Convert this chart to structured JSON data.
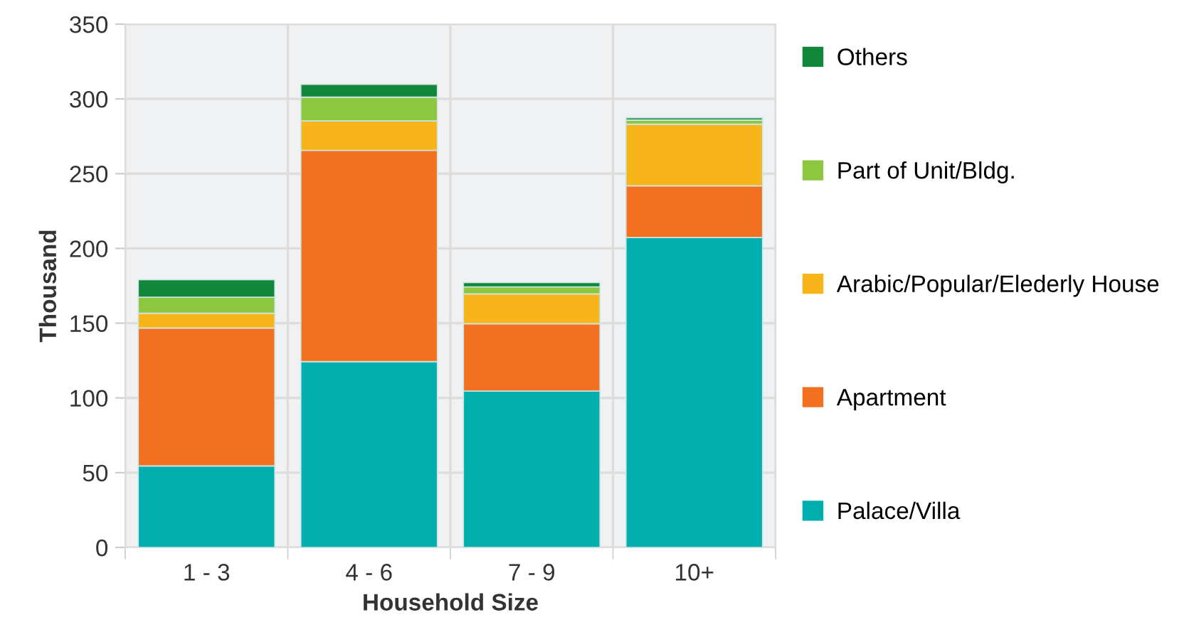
{
  "chart_data": {
    "type": "bar",
    "stacked": true,
    "xlabel": "Household Size",
    "ylabel": "Thousand",
    "categories": [
      "1 - 3",
      "4 - 6",
      "7 - 9",
      "10+"
    ],
    "series": [
      {
        "name": "Palace/Villa",
        "color": "#00aeae",
        "values": [
          54.5,
          124.3,
          104.6,
          207.3
        ]
      },
      {
        "name": "Apartment",
        "color": "#f37021",
        "values": [
          92.3,
          141.3,
          45,
          34.6
        ]
      },
      {
        "name": "Arabic/Popular/Elederly House",
        "color": "#f8b51a",
        "values": [
          9.8,
          19.7,
          20,
          41.2
        ]
      },
      {
        "name": "Part of Unit/Bldg.",
        "color": "#8dc63f",
        "values": [
          10.8,
          15.9,
          4.7,
          2.8
        ]
      },
      {
        "name": "Others",
        "color": "#10873a",
        "values": [
          11.7,
          8.5,
          2.9,
          1.5
        ]
      }
    ],
    "ylim": [
      0,
      350
    ],
    "yticks": [
      0,
      50,
      100,
      150,
      200,
      250,
      300,
      350
    ],
    "grid": true,
    "legend": "right"
  }
}
